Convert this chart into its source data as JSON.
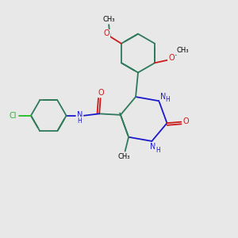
{
  "bg_color": "#e8e8e8",
  "bc": "#2d7a5a",
  "nc": "#1a1acc",
  "oc": "#cc1a1a",
  "clc": "#22bb22",
  "lw": 1.3,
  "figsize": [
    3.0,
    3.0
  ],
  "dpi": 100,
  "xlim": [
    0,
    10
  ],
  "ylim": [
    0,
    10
  ]
}
